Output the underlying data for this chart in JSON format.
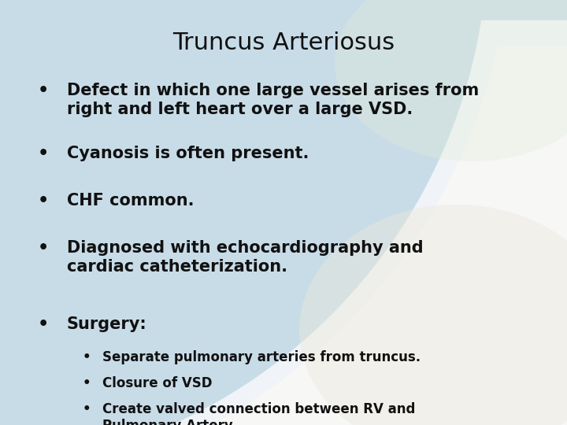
{
  "title": "Truncus Arteriosus",
  "title_fontsize": 22,
  "bullet_fontsize": 15,
  "sub_bullet_fontsize": 12,
  "text_color": "#111111",
  "bullets": [
    "Defect in which one large vessel arises from\nright and left heart over a large VSD.",
    "Cyanosis is often present.",
    "CHF common.",
    "Diagnosed with echocardiography and\ncardiac catheterization.",
    "Surgery:"
  ],
  "sub_bullets": [
    "Separate pulmonary arteries from truncus.",
    "Closure of VSD",
    "Create valved connection between RV and\nPulmonary Artery"
  ],
  "bg_base": "#c8dce8",
  "bg_light": "#f0f4f8",
  "arc_color1": "#a0c8dc",
  "arc_color2": "#d8eaf4",
  "white_arc": "#f8f8f8",
  "cream_area": "#e8e4d8"
}
